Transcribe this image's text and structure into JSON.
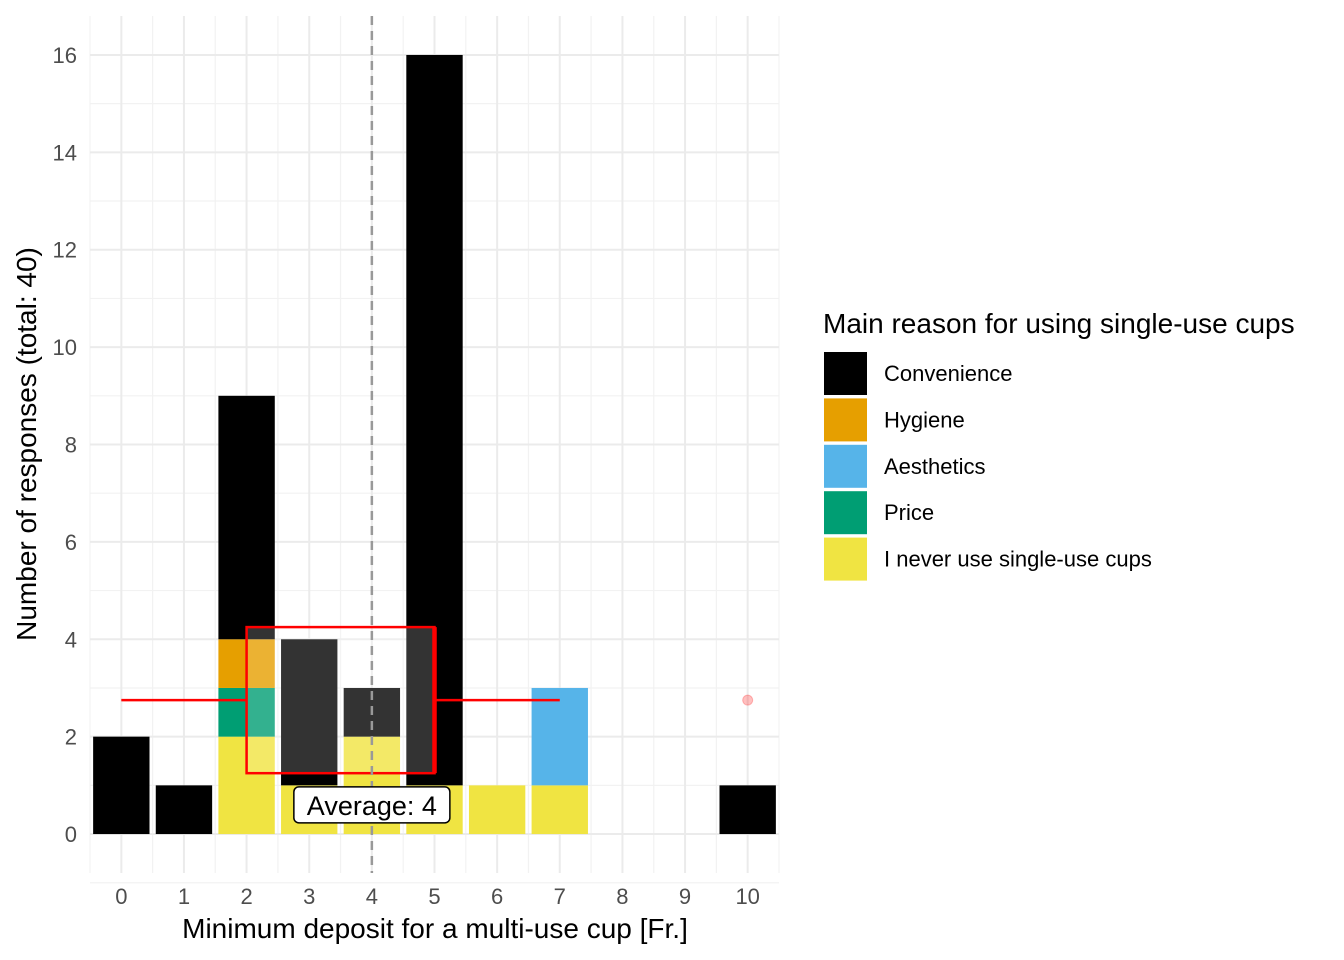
{
  "chart_data": {
    "type": "bar",
    "stacked": true,
    "xlabel": "Minimum deposit for a multi-use cup [Fr.]",
    "ylabel": "Number of responses (total: 40)",
    "categories": [
      "0",
      "1",
      "2",
      "3",
      "4",
      "5",
      "6",
      "7",
      "8",
      "9",
      "10"
    ],
    "xlim": [
      -0.5,
      10.5
    ],
    "ylim": [
      -0.8,
      16.8
    ],
    "yticks": [
      0,
      2,
      4,
      6,
      8,
      10,
      12,
      14,
      16
    ],
    "grid": true,
    "legend_position": "right",
    "legend_title": "Main reason for using single-use cups",
    "series": [
      {
        "name": "I never use single-use cups",
        "color": "#F0E442",
        "values": [
          0,
          0,
          2,
          1,
          2,
          1,
          1,
          1,
          0,
          0,
          0
        ]
      },
      {
        "name": "Price",
        "color": "#009E73",
        "values": [
          0,
          0,
          1,
          0,
          0,
          0,
          0,
          0,
          0,
          0,
          0
        ]
      },
      {
        "name": "Aesthetics",
        "color": "#56B4E9",
        "values": [
          0,
          0,
          0,
          0,
          0,
          0,
          0,
          2,
          0,
          0,
          0
        ]
      },
      {
        "name": "Hygiene",
        "color": "#E69F00",
        "values": [
          0,
          0,
          1,
          0,
          0,
          0,
          0,
          0,
          0,
          0,
          0
        ]
      },
      {
        "name": "Convenience",
        "color": "#000000",
        "values": [
          2,
          1,
          5,
          3,
          1,
          15,
          0,
          0,
          0,
          0,
          1
        ]
      }
    ],
    "legend_order": [
      "Convenience",
      "Hygiene",
      "Aesthetics",
      "Price",
      "I never use single-use cups"
    ],
    "mean_line": {
      "x": 4,
      "style": "dashed",
      "color": "#999999"
    },
    "annotation": {
      "text": "Average: 4",
      "x": 4,
      "y": 0.6
    },
    "boxplot": {
      "orientation": "horizontal",
      "y": 2.75,
      "whisker_low": 0,
      "q1": 2,
      "median": 5,
      "q3": 5,
      "whisker_high": 7,
      "box_ymin": 1.25,
      "box_ymax": 4.25,
      "outliers": [
        10
      ],
      "color": "#FF0000"
    }
  }
}
